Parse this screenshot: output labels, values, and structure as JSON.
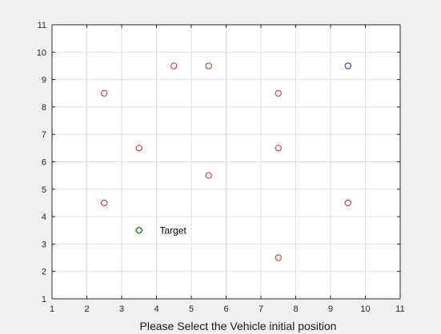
{
  "chart_data": {
    "type": "scatter",
    "title": "",
    "xlabel": "Please Select the Vehicle initial position",
    "ylabel": "",
    "xlim": [
      1,
      11
    ],
    "ylim": [
      1,
      11
    ],
    "xticks": [
      1,
      2,
      3,
      4,
      5,
      6,
      7,
      8,
      9,
      10,
      11
    ],
    "yticks": [
      1,
      2,
      3,
      4,
      5,
      6,
      7,
      8,
      9,
      10,
      11
    ],
    "grid": true,
    "background": "#ffffff",
    "figure_background": "#f0f0f0",
    "series": [
      {
        "marker": "circle-open",
        "color": "#d62728",
        "points": [
          {
            "x": 4.5,
            "y": 9.5
          },
          {
            "x": 5.5,
            "y": 9.5
          },
          {
            "x": 2.5,
            "y": 8.5
          },
          {
            "x": 7.5,
            "y": 8.5
          },
          {
            "x": 3.5,
            "y": 6.5
          },
          {
            "x": 7.5,
            "y": 6.5
          },
          {
            "x": 5.5,
            "y": 5.5
          },
          {
            "x": 2.5,
            "y": 4.5
          },
          {
            "x": 9.5,
            "y": 4.5
          },
          {
            "x": 7.5,
            "y": 2.5
          }
        ]
      },
      {
        "marker": "circle-open",
        "color": "#1f1fbf",
        "points": [
          {
            "x": 9.5,
            "y": 9.5
          }
        ]
      },
      {
        "marker": "diamond-circle",
        "color": "#1a7f1a",
        "points": [
          {
            "x": 3.5,
            "y": 3.5
          }
        ]
      }
    ],
    "annotations": [
      {
        "text": "Target",
        "x": 4.0,
        "y": 3.5
      }
    ]
  }
}
